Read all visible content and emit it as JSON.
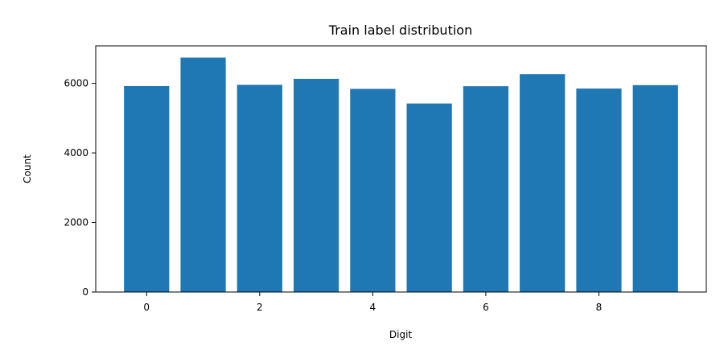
{
  "chart_data": {
    "type": "bar",
    "title": "Train label distribution",
    "xlabel": "Digit",
    "ylabel": "Count",
    "x": [
      0,
      1,
      2,
      3,
      4,
      5,
      6,
      7,
      8,
      9
    ],
    "values": [
      5923,
      6742,
      5958,
      6131,
      5842,
      5421,
      5918,
      6265,
      5851,
      5949
    ],
    "xlim": [
      -0.9,
      9.9
    ],
    "ylim": [
      0,
      7079
    ],
    "xticks": [
      0,
      2,
      4,
      6,
      8
    ],
    "yticks": [
      0,
      2000,
      4000,
      6000
    ],
    "grid": false,
    "bar_color": "#1f77b4"
  }
}
